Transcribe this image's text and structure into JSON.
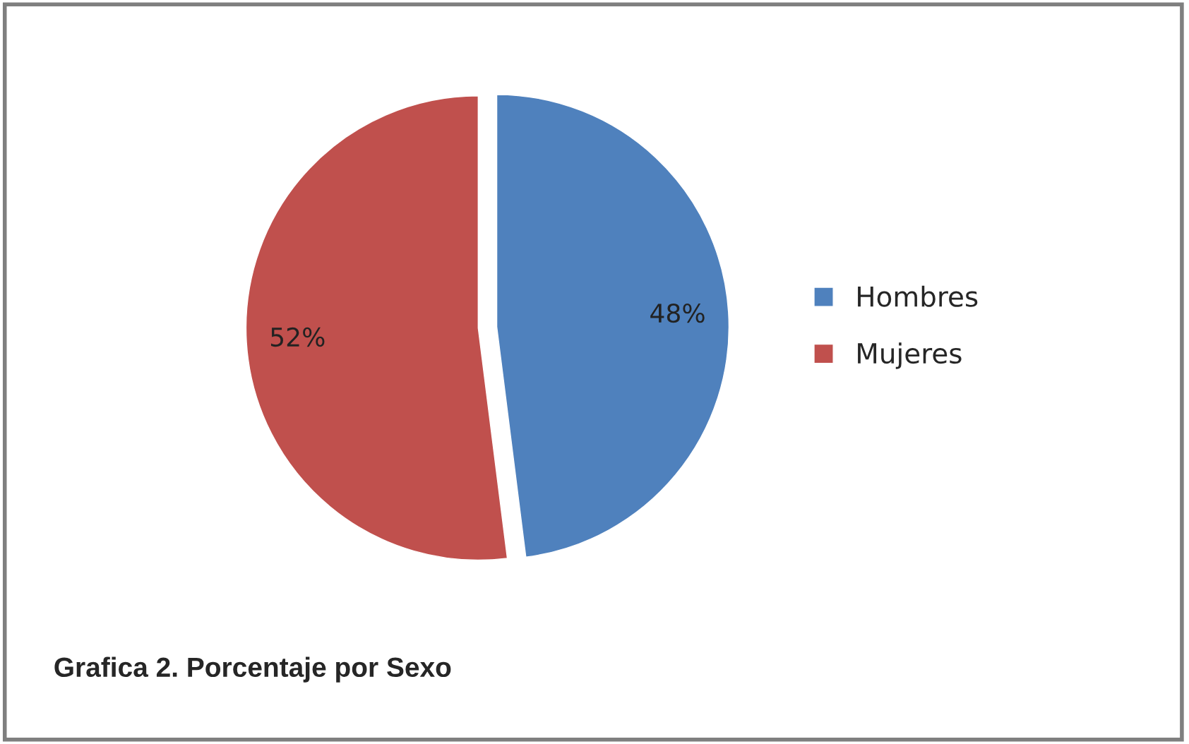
{
  "chart_data": {
    "type": "pie",
    "title": "Grafica 2. Porcentaje por Sexo",
    "categories": [
      "Hombres",
      "Mujeres"
    ],
    "values": [
      48,
      52
    ],
    "colors": [
      "#4f81bd",
      "#c0504d"
    ],
    "value_labels": [
      "48%",
      "52%"
    ],
    "legend": "right"
  }
}
